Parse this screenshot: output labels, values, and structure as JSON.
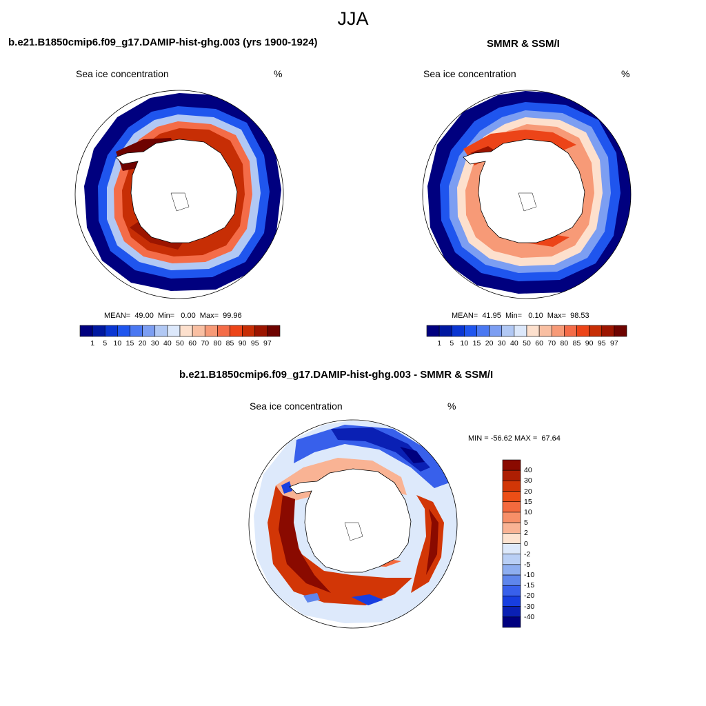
{
  "title": "JJA",
  "panels": [
    {
      "title": "b.e21.B1850cmip6.f09_g17.DAMIP-hist-ghg.003 (yrs 1900-1924)",
      "left_label": "Sea ice concentration",
      "right_label": "%",
      "stats": "MEAN=  49.00  Min=   0.00  Max=  99.96"
    },
    {
      "title": "SMMR & SSM/I",
      "left_label": "Sea ice concentration",
      "right_label": "%",
      "stats": "MEAN=  41.95  Min=   0.10  Max=  98.53"
    },
    {
      "title": "b.e21.B1850cmip6.f09_g17.DAMIP-hist-ghg.003 - SMMR & SSM/I",
      "left_label": "Sea ice concentration",
      "right_label": "%",
      "stats": "MIN = -56.62 MAX =  67.64"
    }
  ],
  "chart_data": [
    {
      "type": "heatmap",
      "projection": "south-polar-stereographic",
      "title": "b.e21.B1850cmip6.f09_g17.DAMIP-hist-ghg.003 (yrs 1900-1924)",
      "variable": "Sea ice concentration",
      "units": "%",
      "mean": 49.0,
      "min": 0.0,
      "max": 99.96,
      "colorbar_levels": [
        "1",
        "5",
        "10",
        "15",
        "20",
        "30",
        "40",
        "50",
        "60",
        "70",
        "80",
        "85",
        "90",
        "95",
        "97"
      ],
      "colorbar_colors": [
        "#00007f",
        "#0018a0",
        "#0a36d2",
        "#1f55ee",
        "#4a78f2",
        "#7c9ef2",
        "#b1c8f4",
        "#dce8fb",
        "#fde0cd",
        "#f9bfa2",
        "#f79a77",
        "#f46c48",
        "#ec4418",
        "#c72e05",
        "#9c1500",
        "#6e0300"
      ]
    },
    {
      "type": "heatmap",
      "projection": "south-polar-stereographic",
      "title": "SMMR & SSM/I",
      "variable": "Sea ice concentration",
      "units": "%",
      "mean": 41.95,
      "min": 0.1,
      "max": 98.53,
      "colorbar_levels": [
        "1",
        "5",
        "10",
        "15",
        "20",
        "30",
        "40",
        "50",
        "60",
        "70",
        "80",
        "85",
        "90",
        "95",
        "97"
      ],
      "colorbar_colors": [
        "#00007f",
        "#0018a0",
        "#0a36d2",
        "#1f55ee",
        "#4a78f2",
        "#7c9ef2",
        "#b1c8f4",
        "#dce8fb",
        "#fde0cd",
        "#f9bfa2",
        "#f79a77",
        "#f46c48",
        "#ec4418",
        "#c72e05",
        "#9c1500",
        "#6e0300"
      ]
    },
    {
      "type": "heatmap",
      "projection": "south-polar-stereographic",
      "title": "b.e21.B1850cmip6.f09_g17.DAMIP-hist-ghg.003 - SMMR & SSM/I",
      "variable": "Sea ice concentration",
      "units": "%",
      "min": -56.62,
      "max": 67.64,
      "colorbar_levels": [
        "40",
        "30",
        "20",
        "15",
        "10",
        "5",
        "2",
        "0",
        "-2",
        "-5",
        "-10",
        "-15",
        "-20",
        "-30",
        "-40"
      ],
      "colorbar_colors": [
        "#8a0a00",
        "#ad1e02",
        "#d23606",
        "#ec4e16",
        "#f46a3e",
        "#f78f68",
        "#f9b394",
        "#fde3d0",
        "#dde9fb",
        "#b9cff5",
        "#8eaef0",
        "#5f86ec",
        "#3860eb",
        "#173ee0",
        "#0a20b4",
        "#00007f"
      ]
    }
  ]
}
